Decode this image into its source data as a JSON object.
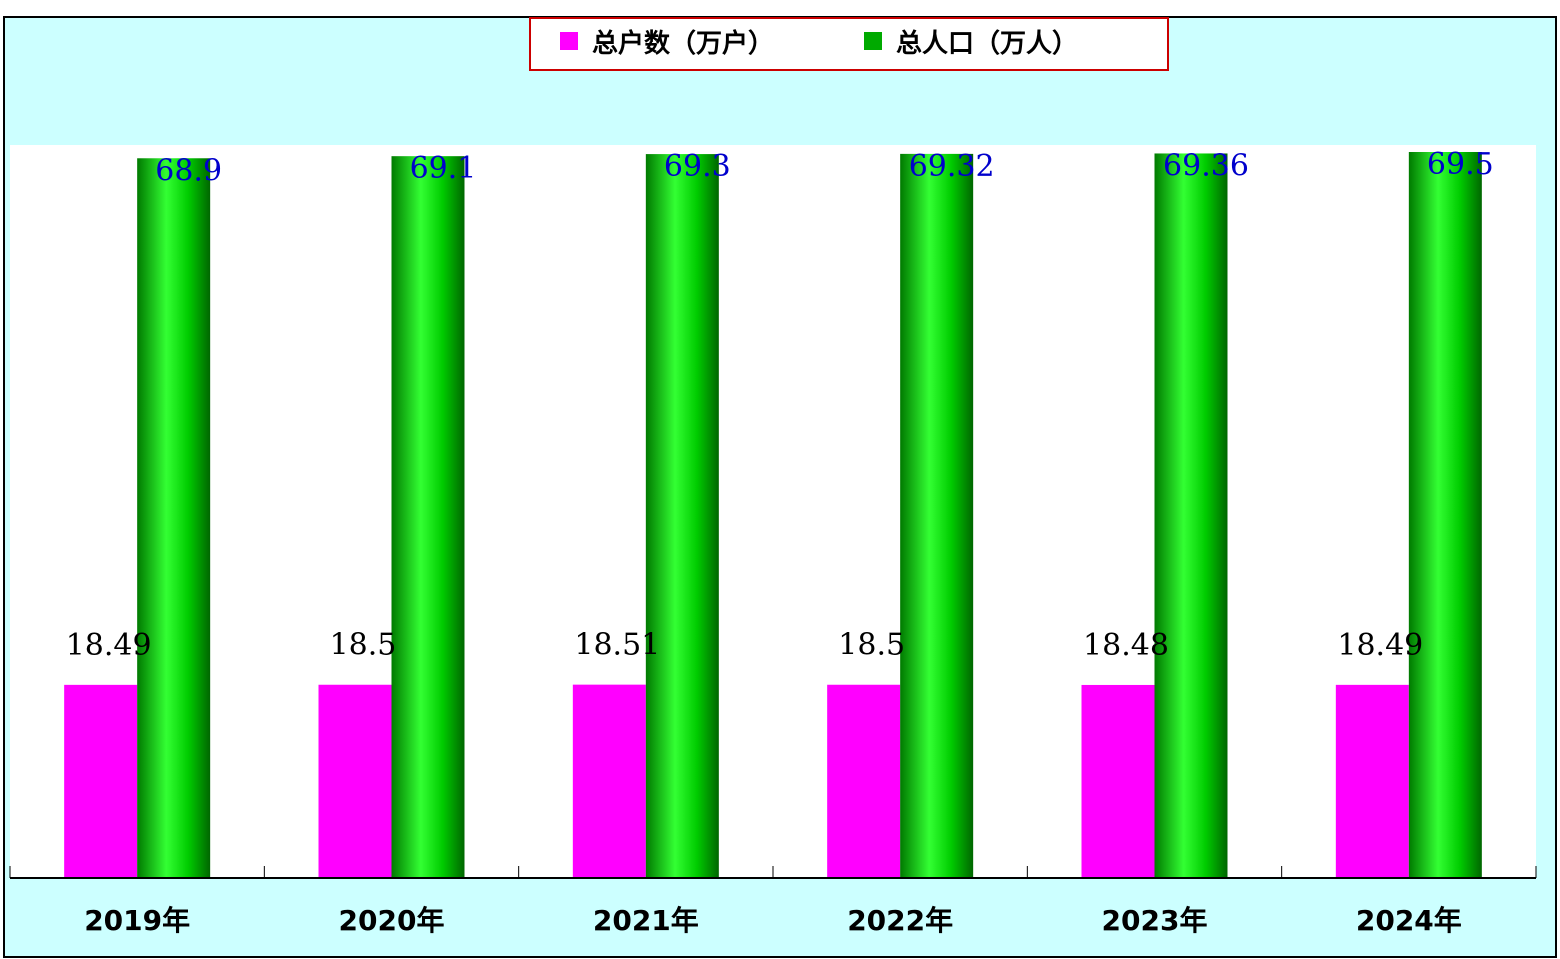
{
  "colors": {
    "background": "#ccffff",
    "plot_area": "#ffffff",
    "households": "#ff00ff",
    "population": "#00aa00",
    "legend_border": "#cc0000",
    "value_label_households": "#000000",
    "value_label_population": "#0000cc",
    "axis": "#000000"
  },
  "chart_data": {
    "type": "bar",
    "title": "",
    "xlabel": "",
    "ylabel": "",
    "categories": [
      "2019年",
      "2020年",
      "2021年",
      "2022年",
      "2023年",
      "2024年"
    ],
    "series": [
      {
        "name": "总户数（万户）",
        "values": [
          18.49,
          18.5,
          18.51,
          18.5,
          18.48,
          18.49
        ],
        "labels": [
          "18.49",
          "18.5",
          "18.51",
          "18.5",
          "18.48",
          "18.49"
        ]
      },
      {
        "name": "总人口（万人）",
        "values": [
          68.9,
          69.1,
          69.3,
          69.32,
          69.36,
          69.5
        ],
        "labels": [
          "68.9",
          "69.1",
          "69.3",
          "69.32",
          "69.36",
          "69.5"
        ]
      }
    ],
    "ylim": [
      0,
      69.5
    ],
    "grid": false,
    "legend_position": "top-center"
  }
}
